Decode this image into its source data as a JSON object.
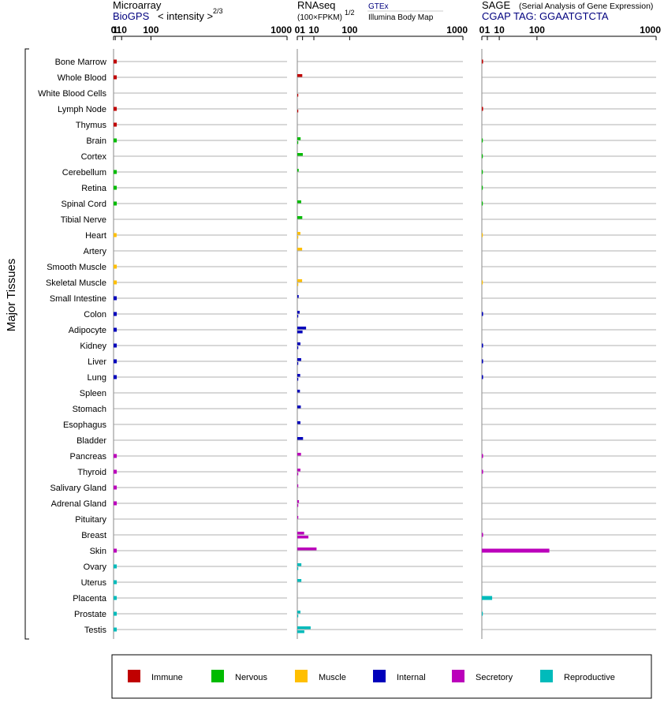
{
  "ylabel": "Major Tissues",
  "headers": {
    "microarray": {
      "title": "Microarray",
      "source": "BioGPS",
      "unit": "< intensity >",
      "exponent": "2/3"
    },
    "rnaseq": {
      "title": "RNAseq",
      "unit": "(100×FPKM)",
      "exponent": "1/2",
      "source1": "GTEx",
      "source2": "Illumina Body Map"
    },
    "sage": {
      "title": "SAGE",
      "subtitle": "(Serial Analysis of Gene Expression)",
      "tag": "CGAP TAG: GGAATGTCTA"
    }
  },
  "ticks": [
    "0",
    "1",
    "10",
    "100",
    "1000"
  ],
  "categories": {
    "Immune": "#c00000",
    "Nervous": "#00bb00",
    "Muscle": "#ffbf00",
    "Internal": "#0000bb",
    "Secretory": "#bb00bb",
    "Reproductive": "#00bbbb"
  },
  "legend": [
    {
      "label": "Immune",
      "color": "#c00000"
    },
    {
      "label": "Nervous",
      "color": "#00bb00"
    },
    {
      "label": "Muscle",
      "color": "#ffbf00"
    },
    {
      "label": "Internal",
      "color": "#0000bb"
    },
    {
      "label": "Secretory",
      "color": "#bb00bb"
    },
    {
      "label": "Reproductive",
      "color": "#00bbbb"
    }
  ],
  "chart_data": {
    "type": "bar",
    "x_scale": "power",
    "xlim": [
      0,
      1000
    ],
    "tissues": [
      {
        "name": "Bone Marrow",
        "category": "Immune",
        "microarray": 2.5,
        "gtex": null,
        "ibm": null,
        "sage": 0.05
      },
      {
        "name": "Whole Blood",
        "category": "Immune",
        "microarray": 2.5,
        "gtex": 0.9,
        "ibm": null,
        "sage": null
      },
      {
        "name": "White Blood Cells",
        "category": "Immune",
        "microarray": null,
        "gtex": null,
        "ibm": 0.03,
        "sage": null
      },
      {
        "name": "Lymph Node",
        "category": "Immune",
        "microarray": 2.5,
        "gtex": null,
        "ibm": 0.03,
        "sage": 0.05
      },
      {
        "name": "Thymus",
        "category": "Immune",
        "microarray": 2.5,
        "gtex": null,
        "ibm": null,
        "sage": null
      },
      {
        "name": "Brain",
        "category": "Nervous",
        "microarray": 2.5,
        "gtex": 0.4,
        "ibm": 0.01,
        "sage": 0.03
      },
      {
        "name": "Cortex",
        "category": "Nervous",
        "microarray": null,
        "gtex": 1.1,
        "ibm": null,
        "sage": 0.03
      },
      {
        "name": "Cerebellum",
        "category": "Nervous",
        "microarray": 2.5,
        "gtex": 0.07,
        "ibm": null,
        "sage": 0.03
      },
      {
        "name": "Retina",
        "category": "Nervous",
        "microarray": 2.5,
        "gtex": null,
        "ibm": null,
        "sage": 0.03
      },
      {
        "name": "Spinal Cord",
        "category": "Nervous",
        "microarray": 2.5,
        "gtex": 0.55,
        "ibm": null,
        "sage": 0.03
      },
      {
        "name": "Tibial Nerve",
        "category": "Nervous",
        "microarray": null,
        "gtex": 0.9,
        "ibm": null,
        "sage": null
      },
      {
        "name": "Heart",
        "category": "Muscle",
        "microarray": 2.3,
        "gtex": 0.35,
        "ibm": 0.01,
        "sage": 0.02
      },
      {
        "name": "Artery",
        "category": "Muscle",
        "microarray": null,
        "gtex": 0.85,
        "ibm": null,
        "sage": null
      },
      {
        "name": "Smooth Muscle",
        "category": "Muscle",
        "microarray": 2.5,
        "gtex": null,
        "ibm": null,
        "sage": null
      },
      {
        "name": "Skeletal Muscle",
        "category": "Muscle",
        "microarray": 2.5,
        "gtex": 0.85,
        "ibm": 0.01,
        "sage": 0.02
      },
      {
        "name": "Small Intestine",
        "category": "Internal",
        "microarray": 2.5,
        "gtex": 0.07,
        "ibm": null,
        "sage": null
      },
      {
        "name": "Colon",
        "category": "Internal",
        "microarray": 2.5,
        "gtex": 0.2,
        "ibm": 0.01,
        "sage": 0.05
      },
      {
        "name": "Adipocyte",
        "category": "Internal",
        "microarray": 2.5,
        "gtex": 2.8,
        "ibm": 1.0,
        "sage": null
      },
      {
        "name": "Kidney",
        "category": "Internal",
        "microarray": 2.5,
        "gtex": 0.35,
        "ibm": 0.01,
        "sage": 0.05
      },
      {
        "name": "Liver",
        "category": "Internal",
        "microarray": 2.5,
        "gtex": 0.55,
        "ibm": 0.01,
        "sage": 0.05
      },
      {
        "name": "Lung",
        "category": "Internal",
        "microarray": 2.5,
        "gtex": 0.3,
        "ibm": 0.01,
        "sage": 0.05
      },
      {
        "name": "Spleen",
        "category": "Internal",
        "microarray": null,
        "gtex": 0.25,
        "ibm": null,
        "sage": null
      },
      {
        "name": "Stomach",
        "category": "Internal",
        "microarray": null,
        "gtex": 0.45,
        "ibm": null,
        "sage": null
      },
      {
        "name": "Esophagus",
        "category": "Internal",
        "microarray": null,
        "gtex": 0.35,
        "ibm": null,
        "sage": null
      },
      {
        "name": "Bladder",
        "category": "Internal",
        "microarray": null,
        "gtex": 1.2,
        "ibm": null,
        "sage": null
      },
      {
        "name": "Pancreas",
        "category": "Secretory",
        "microarray": 2.5,
        "gtex": 0.5,
        "ibm": null,
        "sage": 0.05
      },
      {
        "name": "Thyroid",
        "category": "Secretory",
        "microarray": 2.5,
        "gtex": 0.35,
        "ibm": 0.01,
        "sage": 0.05
      },
      {
        "name": "Salivary Gland",
        "category": "Secretory",
        "microarray": 2.5,
        "gtex": 0.01,
        "ibm": null,
        "sage": null
      },
      {
        "name": "Adrenal Gland",
        "category": "Secretory",
        "microarray": 2.5,
        "gtex": 0.1,
        "ibm": 0.01,
        "sage": null
      },
      {
        "name": "Pituitary",
        "category": "Secretory",
        "microarray": null,
        "gtex": 0.02,
        "ibm": null,
        "sage": null
      },
      {
        "name": "Breast",
        "category": "Secretory",
        "microarray": null,
        "gtex": 1.7,
        "ibm": 4.5,
        "sage": 0.05
      },
      {
        "name": "Skin",
        "category": "Secretory",
        "microarray": 2.5,
        "gtex": 13.5,
        "ibm": null,
        "sage": 150
      },
      {
        "name": "Ovary",
        "category": "Reproductive",
        "microarray": 2.5,
        "gtex": 0.6,
        "ibm": 0.01,
        "sage": null
      },
      {
        "name": "Uterus",
        "category": "Reproductive",
        "microarray": 2.5,
        "gtex": 0.6,
        "ibm": null,
        "sage": null
      },
      {
        "name": "Placenta",
        "category": "Reproductive",
        "microarray": 2.5,
        "gtex": null,
        "ibm": null,
        "sage": 3.5
      },
      {
        "name": "Prostate",
        "category": "Reproductive",
        "microarray": 2.5,
        "gtex": 0.35,
        "ibm": 0.01,
        "sage": 0.03
      },
      {
        "name": "Testis",
        "category": "Reproductive",
        "microarray": 2.5,
        "gtex": 6.5,
        "ibm": 1.8,
        "sage": null
      }
    ]
  }
}
